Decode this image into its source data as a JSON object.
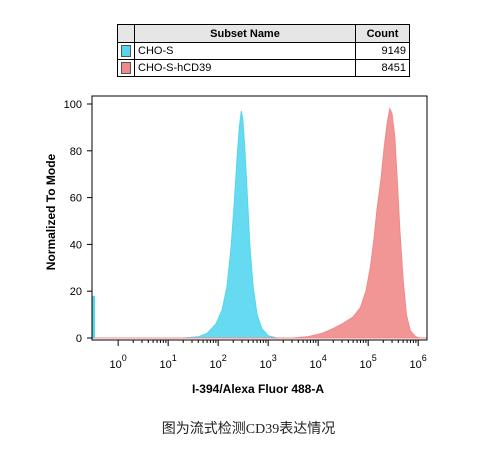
{
  "legend": {
    "header_name": "Subset Name",
    "header_count": "Count",
    "rows": [
      {
        "name": "CHO-S",
        "count": "9149",
        "color": "#55d6ee"
      },
      {
        "name": "CHO-S-hCD39",
        "count": "8451",
        "color": "#f08a8a"
      }
    ]
  },
  "caption": "图为流式检测CD39表达情况",
  "chart_data": {
    "type": "area",
    "xlabel": "I-394/Alexa Fluor 488-A",
    "ylabel": "Normalized To Mode",
    "xscale": "log",
    "xlim": [
      0.3,
      1500000
    ],
    "ylim": [
      0,
      100
    ],
    "x_ticks": [
      {
        "value": 1,
        "base": "10",
        "exp": "0"
      },
      {
        "value": 10,
        "base": "10",
        "exp": "1"
      },
      {
        "value": 100,
        "base": "10",
        "exp": "2"
      },
      {
        "value": 1000,
        "base": "10",
        "exp": "3"
      },
      {
        "value": 10000,
        "base": "10",
        "exp": "4"
      },
      {
        "value": 100000,
        "base": "10",
        "exp": "5"
      },
      {
        "value": 1000000,
        "base": "10",
        "exp": "6"
      }
    ],
    "y_ticks": [
      "0",
      "20",
      "40",
      "60",
      "80",
      "100"
    ],
    "series": [
      {
        "name": "CHO-S",
        "color": "#55d6ee",
        "points": [
          [
            0.3,
            0
          ],
          [
            20,
            0
          ],
          [
            40,
            0.5
          ],
          [
            60,
            2
          ],
          [
            90,
            6
          ],
          [
            120,
            12
          ],
          [
            150,
            22
          ],
          [
            180,
            38
          ],
          [
            210,
            58
          ],
          [
            240,
            78
          ],
          [
            265,
            90
          ],
          [
            290,
            97
          ],
          [
            310,
            94
          ],
          [
            340,
            82
          ],
          [
            380,
            62
          ],
          [
            430,
            40
          ],
          [
            500,
            22
          ],
          [
            600,
            10
          ],
          [
            750,
            4
          ],
          [
            1000,
            1
          ],
          [
            1500,
            0
          ],
          [
            1500000,
            0
          ]
        ]
      },
      {
        "name": "CHO-S-hCD39",
        "color": "#f08a8a",
        "points": [
          [
            0.3,
            0
          ],
          [
            3000,
            0
          ],
          [
            6000,
            0.5
          ],
          [
            12000,
            2
          ],
          [
            20000,
            4
          ],
          [
            30000,
            6
          ],
          [
            50000,
            9
          ],
          [
            70000,
            13
          ],
          [
            90000,
            20
          ],
          [
            110000,
            30
          ],
          [
            130000,
            42
          ],
          [
            150000,
            55
          ],
          [
            180000,
            68
          ],
          [
            210000,
            82
          ],
          [
            240000,
            92
          ],
          [
            270000,
            98
          ],
          [
            300000,
            96
          ],
          [
            340000,
            86
          ],
          [
            380000,
            68
          ],
          [
            430000,
            46
          ],
          [
            500000,
            25
          ],
          [
            580000,
            10
          ],
          [
            700000,
            3
          ],
          [
            900000,
            0.5
          ],
          [
            1100000,
            0
          ],
          [
            1500000,
            0
          ]
        ]
      }
    ]
  }
}
